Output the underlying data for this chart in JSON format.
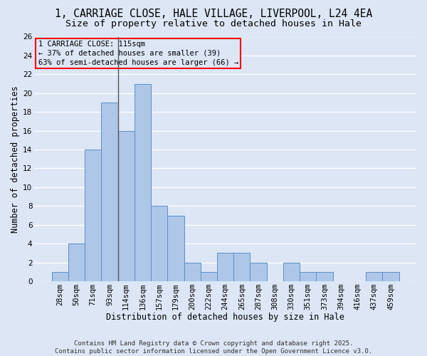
{
  "title_line1": "1, CARRIAGE CLOSE, HALE VILLAGE, LIVERPOOL, L24 4EA",
  "title_line2": "Size of property relative to detached houses in Hale",
  "xlabel": "Distribution of detached houses by size in Hale",
  "ylabel": "Number of detached properties",
  "categories": [
    "28sqm",
    "50sqm",
    "71sqm",
    "93sqm",
    "114sqm",
    "136sqm",
    "157sqm",
    "179sqm",
    "200sqm",
    "222sqm",
    "244sqm",
    "265sqm",
    "287sqm",
    "308sqm",
    "330sqm",
    "351sqm",
    "373sqm",
    "394sqm",
    "416sqm",
    "437sqm",
    "459sqm"
  ],
  "values": [
    1,
    4,
    14,
    19,
    16,
    21,
    8,
    7,
    2,
    1,
    3,
    3,
    2,
    0,
    2,
    1,
    1,
    0,
    0,
    1,
    1
  ],
  "bar_color": "#aec6e8",
  "bar_edge_color": "#5b8ec4",
  "background_color": "#dce6f5",
  "grid_color": "#ffffff",
  "annotation_line1": "1 CARRIAGE CLOSE: 115sqm",
  "annotation_line2": "← 37% of detached houses are smaller (39)",
  "annotation_line3": "63% of semi-detached houses are larger (66) →",
  "marker_line_color": "#555555",
  "ylim": [
    0,
    26
  ],
  "yticks": [
    0,
    2,
    4,
    6,
    8,
    10,
    12,
    14,
    16,
    18,
    20,
    22,
    24,
    26
  ],
  "footer_text": "Contains HM Land Registry data © Crown copyright and database right 2025.\nContains public sector information licensed under the Open Government Licence v3.0.",
  "title_fontsize": 10.5,
  "subtitle_fontsize": 9.5,
  "axis_label_fontsize": 8.5,
  "tick_fontsize": 7.5,
  "annotation_fontsize": 7.5,
  "footer_fontsize": 6.5
}
